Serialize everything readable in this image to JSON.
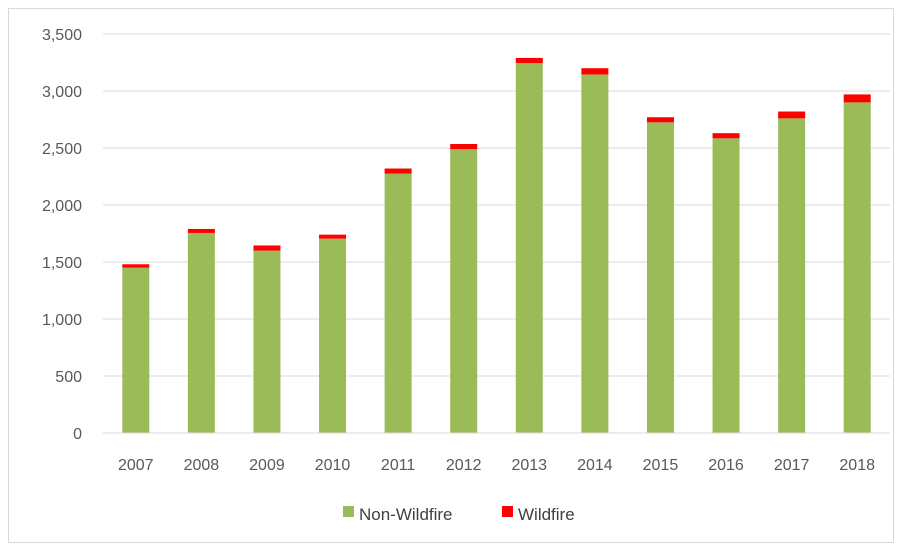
{
  "chart_data": {
    "type": "bar",
    "stacked": true,
    "categories": [
      "2007",
      "2008",
      "2009",
      "2010",
      "2011",
      "2012",
      "2013",
      "2014",
      "2015",
      "2016",
      "2017",
      "2018"
    ],
    "series": [
      {
        "name": "Non-Wildfire",
        "color": "#9bbb59",
        "values": [
          1450,
          1755,
          1600,
          1705,
          2275,
          2490,
          3245,
          3145,
          2725,
          2585,
          2760,
          2900
        ]
      },
      {
        "name": "Wildfire",
        "color": "#ff0000",
        "values": [
          30,
          35,
          45,
          35,
          45,
          45,
          45,
          55,
          45,
          45,
          60,
          70
        ]
      }
    ],
    "yticks": [
      "0",
      "500",
      "1,000",
      "1,500",
      "2,000",
      "2,500",
      "3,000",
      "3,500"
    ],
    "ylim": [
      0,
      3500
    ],
    "grid": true,
    "legend": "bottom"
  }
}
